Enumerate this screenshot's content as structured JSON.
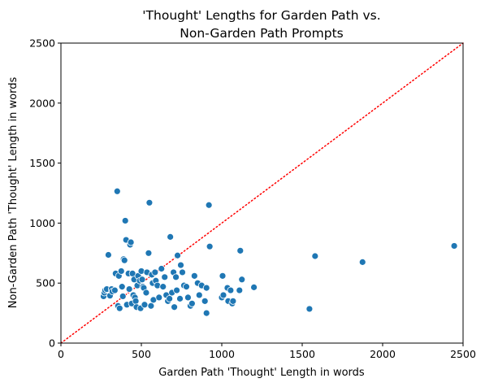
{
  "chart_data": {
    "type": "scatter",
    "title": [
      "'Thought' Lengths for Garden Path vs.",
      "Non-Garden Path Prompts"
    ],
    "xlabel": "Garden Path 'Thought' Length in words",
    "ylabel": "Non-Garden Path 'Thought' Length in words",
    "xlim": [
      0,
      2500
    ],
    "ylim": [
      0,
      2500
    ],
    "xticks": [
      0,
      500,
      1000,
      1500,
      2000,
      2500
    ],
    "yticks": [
      0,
      500,
      1000,
      1500,
      2000,
      2500
    ],
    "grid": false,
    "point_color": "#1f77b4",
    "reference_line": {
      "style": "dotted",
      "color": "#ff0000",
      "from": [
        0,
        0
      ],
      "to": [
        2500,
        2500
      ]
    },
    "points": [
      [
        265,
        390
      ],
      [
        270,
        420
      ],
      [
        275,
        440
      ],
      [
        285,
        450
      ],
      [
        295,
        735
      ],
      [
        305,
        395
      ],
      [
        315,
        450
      ],
      [
        320,
        430
      ],
      [
        335,
        440
      ],
      [
        340,
        580
      ],
      [
        350,
        1265
      ],
      [
        355,
        310
      ],
      [
        360,
        560
      ],
      [
        365,
        290
      ],
      [
        375,
        600
      ],
      [
        380,
        470
      ],
      [
        385,
        390
      ],
      [
        390,
        700
      ],
      [
        395,
        690
      ],
      [
        400,
        1020
      ],
      [
        405,
        860
      ],
      [
        410,
        320
      ],
      [
        420,
        580
      ],
      [
        425,
        450
      ],
      [
        430,
        820
      ],
      [
        435,
        840
      ],
      [
        440,
        330
      ],
      [
        445,
        580
      ],
      [
        450,
        400
      ],
      [
        455,
        530
      ],
      [
        460,
        380
      ],
      [
        465,
        350
      ],
      [
        470,
        300
      ],
      [
        475,
        480
      ],
      [
        480,
        560
      ],
      [
        490,
        520
      ],
      [
        495,
        290
      ],
      [
        500,
        600
      ],
      [
        505,
        530
      ],
      [
        510,
        470
      ],
      [
        515,
        460
      ],
      [
        520,
        320
      ],
      [
        530,
        420
      ],
      [
        535,
        590
      ],
      [
        545,
        750
      ],
      [
        550,
        1170
      ],
      [
        560,
        310
      ],
      [
        565,
        570
      ],
      [
        570,
        500
      ],
      [
        575,
        360
      ],
      [
        585,
        590
      ],
      [
        590,
        520
      ],
      [
        600,
        480
      ],
      [
        610,
        380
      ],
      [
        625,
        620
      ],
      [
        635,
        470
      ],
      [
        645,
        550
      ],
      [
        655,
        400
      ],
      [
        665,
        350
      ],
      [
        675,
        370
      ],
      [
        680,
        885
      ],
      [
        690,
        420
      ],
      [
        700,
        590
      ],
      [
        705,
        300
      ],
      [
        715,
        550
      ],
      [
        720,
        440
      ],
      [
        725,
        730
      ],
      [
        740,
        370
      ],
      [
        745,
        650
      ],
      [
        755,
        590
      ],
      [
        765,
        480
      ],
      [
        780,
        470
      ],
      [
        790,
        380
      ],
      [
        805,
        310
      ],
      [
        815,
        330
      ],
      [
        830,
        560
      ],
      [
        850,
        500
      ],
      [
        860,
        400
      ],
      [
        875,
        480
      ],
      [
        895,
        350
      ],
      [
        905,
        460
      ],
      [
        905,
        250
      ],
      [
        920,
        1150
      ],
      [
        925,
        805
      ],
      [
        1000,
        380
      ],
      [
        1005,
        560
      ],
      [
        1010,
        400
      ],
      [
        1035,
        460
      ],
      [
        1040,
        350
      ],
      [
        1055,
        440
      ],
      [
        1065,
        330
      ],
      [
        1070,
        350
      ],
      [
        1110,
        440
      ],
      [
        1115,
        770
      ],
      [
        1125,
        530
      ],
      [
        1200,
        465
      ],
      [
        1545,
        285
      ],
      [
        1580,
        725
      ],
      [
        1875,
        675
      ],
      [
        2445,
        810
      ]
    ]
  }
}
